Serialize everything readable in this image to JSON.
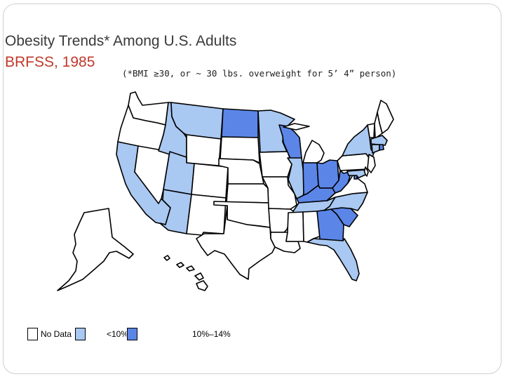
{
  "title": {
    "line1": "Obesity Trends* Among U.S. Adults",
    "line2": "BRFSS, 1985",
    "subtitle": "(*BMI ≥30, or ~ 30 lbs. overweight for 5’ 4” person)"
  },
  "legend": {
    "items": [
      {
        "label": "No Data",
        "color": "#ffffff"
      },
      {
        "label": "<10%",
        "color": "#a9c8f2"
      },
      {
        "label": "10%–14%",
        "color": "#5b86e8"
      }
    ]
  },
  "map_data": {
    "type": "choropleth",
    "region": "United States",
    "year": 1985,
    "categories": [
      "No Data",
      "<10%",
      "10%–14%"
    ],
    "colors": {
      "nodata": "#ffffff",
      "low": "#a9c8f2",
      "mid": "#5b86e8"
    },
    "states": {
      "WA": "nodata",
      "OR": "nodata",
      "CA": "low",
      "NV": "nodata",
      "ID": "low",
      "MT": "low",
      "WY": "nodata",
      "UT": "low",
      "AZ": "low",
      "CO": "nodata",
      "NM": "nodata",
      "ND": "mid",
      "SD": "nodata",
      "NE": "nodata",
      "KS": "nodata",
      "OK": "nodata",
      "TX": "nodata",
      "MN": "low",
      "IA": "nodata",
      "MO": "nodata",
      "AR": "nodata",
      "LA": "nodata",
      "WI": "mid",
      "IL": "low",
      "MI": "nodata",
      "IN": "mid",
      "OH": "mid",
      "KY": "mid",
      "TN": "low",
      "MS": "nodata",
      "AL": "nodata",
      "GA": "mid",
      "FL": "low",
      "SC": "mid",
      "NC": "low",
      "VA": "nodata",
      "WV": "mid",
      "PA": "nodata",
      "NY": "low",
      "VT": "nodata",
      "NH": "nodata",
      "ME": "nodata",
      "MA": "low",
      "RI": "mid",
      "CT": "low",
      "NJ": "nodata",
      "DE": "nodata",
      "MD": "low",
      "DC": "mid",
      "AK": "nodata",
      "HI": "nodata"
    }
  }
}
